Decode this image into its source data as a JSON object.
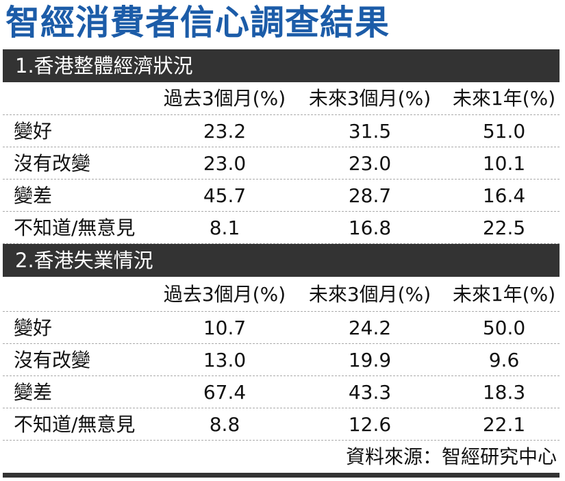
{
  "title": "智經消費者信心調查結果",
  "sections": [
    {
      "title": "1.香港整體經濟狀況",
      "columns": [
        "過去3個月(%)",
        "未來3個月(%)",
        "未來1年(%)"
      ],
      "rows": [
        [
          "變好",
          "23.2",
          "31.5",
          "51.0"
        ],
        [
          "沒有改變",
          "23.0",
          "23.0",
          "10.1"
        ],
        [
          "變差",
          "45.7",
          "28.7",
          "16.4"
        ],
        [
          "不知道/無意見",
          "8.1",
          "16.8",
          "22.5"
        ]
      ]
    },
    {
      "title": "2.香港失業情況",
      "columns": [
        "過去3個月(%)",
        "未來3個月(%)",
        "未來1年(%)"
      ],
      "rows": [
        [
          "變好",
          "10.7",
          "24.2",
          "50.0"
        ],
        [
          "沒有改變",
          "13.0",
          "19.9",
          "9.6"
        ],
        [
          "變差",
          "67.4",
          "43.3",
          "18.3"
        ],
        [
          "不知道/無意見",
          "8.8",
          "12.6",
          "22.1"
        ]
      ]
    }
  ],
  "source": "資料來源：智經研究中心"
}
